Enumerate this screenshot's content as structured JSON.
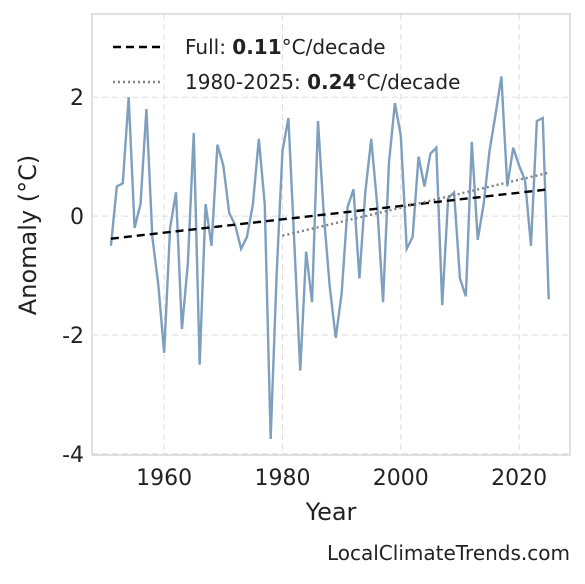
{
  "chart_data": {
    "type": "line",
    "xlabel": "Year",
    "ylabel": "Anomaly (°C)",
    "watermark": "LocalClimateTrends.com",
    "xlim": [
      1947.8,
      2028.6
    ],
    "ylim": [
      -4.02,
      3.4
    ],
    "xticks": [
      1960,
      1980,
      2000,
      2020
    ],
    "yticks": [
      -4,
      -2,
      0,
      2
    ],
    "grid": true,
    "series": [
      {
        "name": "Anomaly",
        "color": "#7f9fbf",
        "x": [
          1951,
          1952,
          1953,
          1954,
          1955,
          1956,
          1957,
          1958,
          1959,
          1960,
          1961,
          1962,
          1963,
          1964,
          1965,
          1966,
          1967,
          1968,
          1969,
          1970,
          1971,
          1972,
          1973,
          1974,
          1975,
          1976,
          1977,
          1978,
          1979,
          1980,
          1981,
          1982,
          1983,
          1984,
          1985,
          1986,
          1987,
          1988,
          1989,
          1990,
          1991,
          1992,
          1993,
          1994,
          1995,
          1996,
          1997,
          1998,
          1999,
          2000,
          2001,
          2002,
          2003,
          2004,
          2005,
          2006,
          2007,
          2008,
          2009,
          2010,
          2011,
          2012,
          2013,
          2014,
          2015,
          2016,
          2017,
          2018,
          2019,
          2020,
          2021,
          2022,
          2023,
          2024,
          2025
        ],
        "values": [
          -0.5,
          0.5,
          0.55,
          2.0,
          -0.2,
          0.2,
          1.8,
          -0.35,
          -1.15,
          -2.3,
          -0.2,
          0.4,
          -1.9,
          -0.8,
          1.4,
          -2.5,
          0.2,
          -0.5,
          1.2,
          0.85,
          0.05,
          -0.15,
          -0.55,
          -0.35,
          0.2,
          1.3,
          0.2,
          -3.75,
          -1.0,
          1.1,
          1.65,
          -0.45,
          -2.6,
          -0.6,
          -1.45,
          1.6,
          0.0,
          -1.2,
          -2.05,
          -1.3,
          0.15,
          0.45,
          -1.05,
          0.4,
          1.3,
          0.2,
          -1.45,
          0.9,
          1.9,
          1.35,
          -0.55,
          -0.35,
          1.0,
          0.5,
          1.05,
          1.15,
          -1.5,
          0.3,
          0.4,
          -1.05,
          -1.35,
          1.25,
          -0.4,
          0.2,
          1.1,
          1.7,
          2.35,
          0.5,
          1.15,
          0.85,
          0.6,
          -0.5,
          1.6,
          1.65,
          -1.4
        ]
      },
      {
        "name": "Full",
        "label_prefix": "Full: ",
        "slope": "0.11",
        "unit": "°C/decade",
        "color": "#000000",
        "dash": "8,5",
        "x": [
          1951,
          2025
        ],
        "values": [
          -0.38,
          0.45
        ]
      },
      {
        "name": "1980-2025",
        "label_prefix": "1980-2025: ",
        "slope": "0.24",
        "unit": "°C/decade",
        "color": "#808080",
        "dash": "2,3",
        "x": [
          1980,
          2025
        ],
        "values": [
          -0.33,
          0.73
        ]
      }
    ]
  }
}
